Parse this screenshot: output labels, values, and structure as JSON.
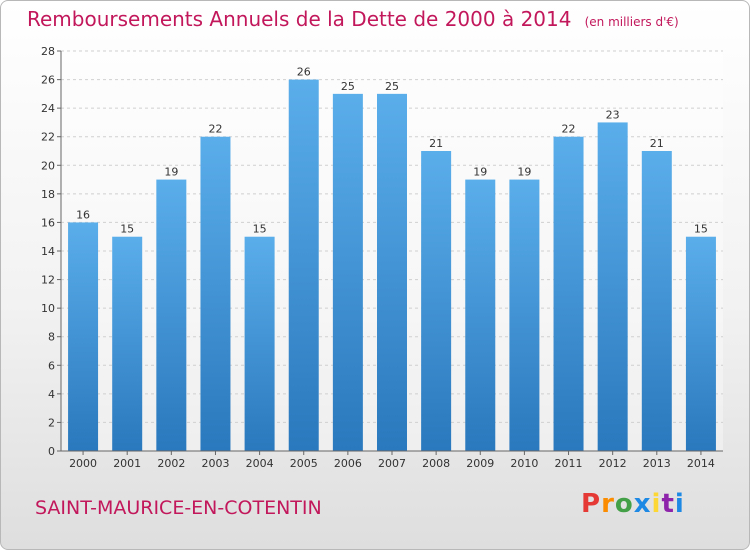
{
  "header": {
    "title": "Remboursements Annuels de la Dette de 2000 à 2014",
    "unit": "(en milliers d'€)"
  },
  "footer": {
    "commune": "SAINT-MAURICE-EN-COTENTIN",
    "logo": "Proxiti",
    "logo_colors": [
      "#e53935",
      "#fb8c00",
      "#43a047",
      "#1e88e5",
      "#fdd835",
      "#8e24aa",
      "#1e88e5"
    ]
  },
  "colors": {
    "title": "#c2185b",
    "bar_light": "#5aaeea",
    "bar_dark": "#2a78bd"
  },
  "chart_data": {
    "type": "bar",
    "categories": [
      "2000",
      "2001",
      "2002",
      "2003",
      "2004",
      "2005",
      "2006",
      "2007",
      "2008",
      "2009",
      "2010",
      "2011",
      "2012",
      "2013",
      "2014"
    ],
    "values": [
      16,
      15,
      19,
      22,
      15,
      26,
      25,
      25,
      21,
      19,
      19,
      22,
      23,
      21,
      15
    ],
    "ylim": [
      0,
      28
    ],
    "yticks": [
      0,
      2,
      4,
      6,
      8,
      10,
      12,
      14,
      16,
      18,
      20,
      22,
      24,
      26,
      28
    ],
    "grid": true,
    "data_labels": true
  }
}
